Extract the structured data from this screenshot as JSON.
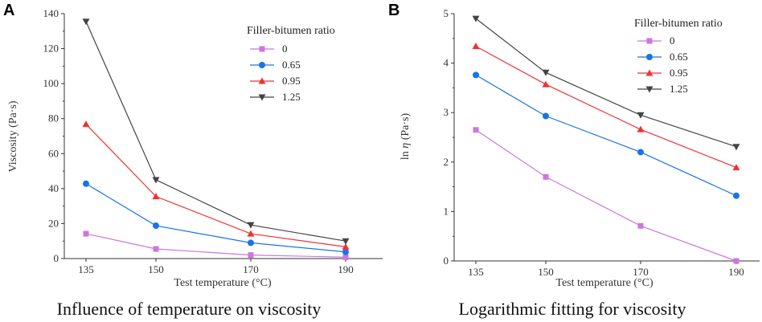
{
  "chart_data": [
    {
      "type": "line",
      "panel_label": "A",
      "title": "Influence of temperature on viscosity",
      "xlabel": "Test temperature (°C)",
      "ylabel": "Viscosity (Pa·s)",
      "categories": [
        "135",
        "150",
        "170",
        "190"
      ],
      "ylim": [
        0,
        140
      ],
      "yticks": [
        "0",
        "20",
        "40",
        "60",
        "80",
        "100",
        "120",
        "140"
      ],
      "legend_title": "Filler-bitumen ratio",
      "series": [
        {
          "name": "0",
          "color": "#cc77dd",
          "marker": "square",
          "values": [
            14.2,
            5.5,
            2.0,
            0.8
          ]
        },
        {
          "name": "0.65",
          "color": "#1a73e8",
          "marker": "circle",
          "values": [
            42.8,
            18.8,
            9.0,
            3.8
          ]
        },
        {
          "name": "0.95",
          "color": "#ee3333",
          "marker": "triangle-up",
          "values": [
            76.8,
            35.5,
            14.2,
            6.7
          ]
        },
        {
          "name": "1.25",
          "color": "#444444",
          "marker": "triangle-down",
          "values": [
            135.5,
            45.0,
            19.2,
            10.0
          ]
        }
      ]
    },
    {
      "type": "line",
      "panel_label": "B",
      "title": "Logarithmic fitting for viscosity",
      "xlabel": "Test temperature (°C)",
      "ylabel_prefix": "ln",
      "ylabel_symbol": "η",
      "ylabel_suffix": "(Pa·s)",
      "categories": [
        "135",
        "150",
        "170",
        "190"
      ],
      "ylim": [
        0,
        5
      ],
      "yticks": [
        "0",
        "1",
        "2",
        "3",
        "4",
        "5"
      ],
      "legend_title": "Filler-bitumen ratio",
      "series": [
        {
          "name": "0",
          "color": "#cc77dd",
          "marker": "square",
          "values": [
            2.65,
            1.7,
            0.71,
            0.0
          ]
        },
        {
          "name": "0.65",
          "color": "#1a73e8",
          "marker": "circle",
          "values": [
            3.76,
            2.93,
            2.2,
            1.32
          ]
        },
        {
          "name": "0.95",
          "color": "#ee3333",
          "marker": "triangle-up",
          "values": [
            4.34,
            3.57,
            2.66,
            1.89
          ]
        },
        {
          "name": "1.25",
          "color": "#444444",
          "marker": "triangle-down",
          "values": [
            4.9,
            3.81,
            2.95,
            2.31
          ]
        }
      ]
    }
  ]
}
